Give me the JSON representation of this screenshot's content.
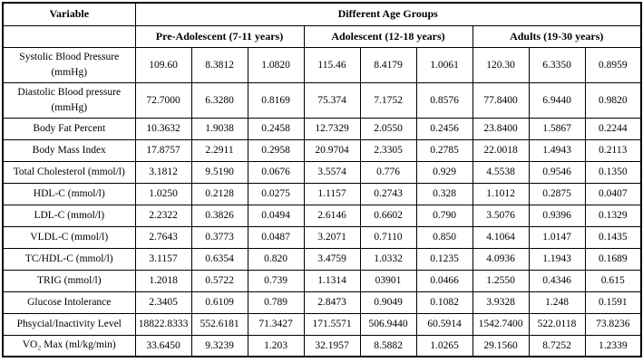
{
  "table": {
    "variable_header": "Variable",
    "group_header": "Different Age Groups",
    "age_groups": [
      "Pre-Adolescent (7-11 years)",
      "Adolescent (12-18 years)",
      "Adults (19-30 years)"
    ],
    "rows": [
      {
        "label": "Systolic Blood Pressure (mmHg)",
        "values": [
          "109.60",
          "8.3812",
          "1.0820",
          "115.46",
          "8.4179",
          "1.0061",
          "120.30",
          "6.3350",
          "0.8959"
        ]
      },
      {
        "label": "Diastolic Blood pressure (mmHg)",
        "values": [
          "72.7000",
          "6.3280",
          "0.8169",
          "75.374",
          "7.1752",
          "0.8576",
          "77.8400",
          "6.9440",
          "0.9820"
        ]
      },
      {
        "label": "Body Fat Percent",
        "values": [
          "10.3632",
          "1.9038",
          "0.2458",
          "12.7329",
          "2.0550",
          "0.2456",
          "23.8400",
          "1.5867",
          "0.2244"
        ]
      },
      {
        "label": "Body Mass Index",
        "values": [
          "17.8757",
          "2.2911",
          "0.2958",
          "20.9704",
          "2.3305",
          "0.2785",
          "22.0018",
          "1.4943",
          "0.2113"
        ]
      },
      {
        "label": "Total Cholesterol (mmol/l)",
        "values": [
          "3.1812",
          "9.5190",
          "0.0676",
          "3.5574",
          "0.776",
          "0.929",
          "4.5538",
          "0.9546",
          "0.1350"
        ]
      },
      {
        "label": "HDL-C (mmol/l)",
        "values": [
          "1.0250",
          "0.2128",
          "0.0275",
          "1.1157",
          "0.2743",
          "0.328",
          "1.1012",
          "0.2875",
          "0.0407"
        ]
      },
      {
        "label": "LDL-C (mmol/l)",
        "values": [
          "2.2322",
          "0.3826",
          "0.0494",
          "2.6146",
          "0.6602",
          "0.790",
          "3.5076",
          "0.9396",
          "0.1329"
        ]
      },
      {
        "label": "VLDL-C (mmol/l)",
        "values": [
          "2.7643",
          "0.3773",
          "0.0487",
          "3.2071",
          "0.7110",
          "0.850",
          "4.1064",
          "1.0147",
          "0.1435"
        ]
      },
      {
        "label": "TC/HDL-C (mmol/l)",
        "values": [
          "3.1157",
          "0.6354",
          "0.820",
          "3.4759",
          "1.0332",
          "0.1235",
          "4.0936",
          "1.1943",
          "0.1689"
        ]
      },
      {
        "label": "TRIG (mmol/l)",
        "values": [
          "1.2018",
          "0.5722",
          "0.739",
          "1.1314",
          "03901",
          "0.0466",
          "1.2550",
          "0.4346",
          "0.615"
        ]
      },
      {
        "label": "Glucose Intolerance",
        "values": [
          "2.3405",
          "0.6109",
          "0.789",
          "2.8473",
          "0.9049",
          "0.1082",
          "3.9328",
          "1.248",
          "0.1591"
        ]
      },
      {
        "label": "Phsycial/Inactivity Level",
        "values": [
          "18822.8333",
          "552.6181",
          "71.3427",
          "171.5571",
          "506.9440",
          "60.5914",
          "1542.7400",
          "522.0118",
          "73.8236"
        ]
      },
      {
        "label": "VO₂ Max (ml/kg/min)",
        "values": [
          "33.6450",
          "9.3239",
          "1.203",
          "32.1957",
          "8.5882",
          "1.0265",
          "29.1560",
          "8.7252",
          "1.2339"
        ]
      }
    ]
  }
}
